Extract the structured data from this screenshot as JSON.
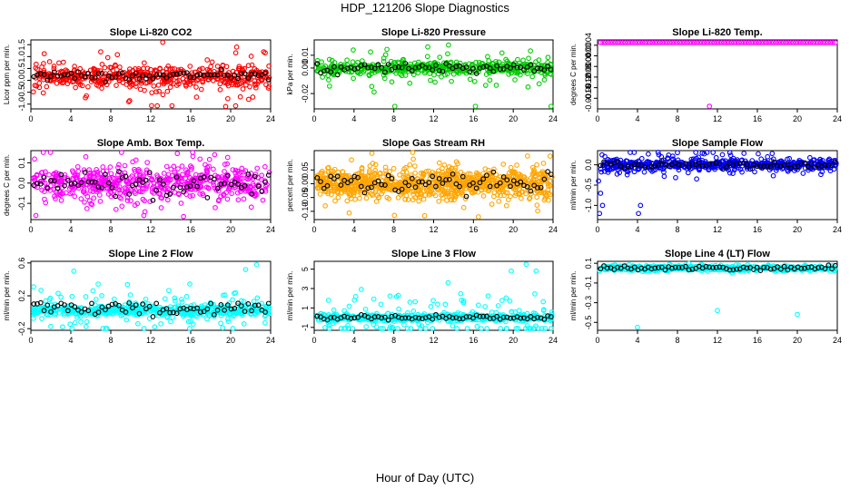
{
  "figure": {
    "title": "HDP_121206  Slope Diagnostics",
    "xlabel": "Hour of Day (UTC)"
  },
  "chart_data": [
    {
      "type": "scatter",
      "title": "Slope Li-820 CO2",
      "ylabel": "Licor ppm per min.",
      "xlim": [
        0,
        24
      ],
      "xticks": [
        0,
        4,
        8,
        12,
        16,
        20,
        24
      ],
      "ylim": [
        -1.2,
        1.7
      ],
      "yticks": [
        -1,
        -0.5,
        0,
        0.5,
        1,
        1.5
      ],
      "ytick_labels": [
        "-1.0",
        "-0.5",
        "0.0",
        "0.5",
        "1.0",
        "1.5"
      ],
      "color": "#ff0000",
      "center": 0.15,
      "spread": 0.35,
      "out_spread": 0.9,
      "n": 520,
      "black_center": 0.2,
      "black_spread": 0.15,
      "outliers": [
        [
          13.2,
          1.6
        ],
        [
          19.5,
          -1.1
        ],
        [
          20.6,
          1.4
        ],
        [
          21.8,
          -0.8
        ],
        [
          23.3,
          1.2
        ],
        [
          9.8,
          -0.9
        ]
      ]
    },
    {
      "type": "scatter",
      "title": "Slope Li-820 Pressure",
      "ylabel": "kPa per min.",
      "xlim": [
        0,
        24
      ],
      "xticks": [
        0,
        4,
        8,
        12,
        16,
        20,
        24
      ],
      "ylim": [
        -0.032,
        0.022
      ],
      "yticks": [
        -0.02,
        0,
        0.01
      ],
      "ytick_labels": [
        "-0.02",
        "0.00",
        "0.01"
      ],
      "color": "#00cc00",
      "center": 0.0,
      "spread": 0.004,
      "out_spread": 0.012,
      "n": 520,
      "black_center": 0.0,
      "black_spread": 0.003,
      "outliers": [
        [
          8.1,
          -0.03
        ],
        [
          16.2,
          -0.03
        ],
        [
          23.8,
          -0.03
        ],
        [
          13.5,
          0.018
        ]
      ]
    },
    {
      "type": "scatter",
      "title": "Slope Li-820 Temp.",
      "ylabel": "degrees C per min.",
      "xlim": [
        0,
        24
      ],
      "xticks": [
        0,
        4,
        8,
        12,
        16,
        20,
        24
      ],
      "ylim": [
        -0.002,
        0.0006
      ],
      "yticks": [
        -0.0016,
        -0.0012,
        -0.0008,
        -0.0004,
        0,
        0.0004
      ],
      "ytick_labels": [
        "-0.0016",
        "-0.0012",
        "-0.0008",
        "-0.0004",
        "0.0000",
        "0.0004"
      ],
      "color": "#ff00ff",
      "flat": 0.0005,
      "n": 96,
      "outliers": [
        [
          11.2,
          -0.0019
        ]
      ]
    },
    {
      "type": "scatter",
      "title": "Slope Amb. Box Temp.",
      "ylabel": "degrees C per min.",
      "xlim": [
        0,
        24
      ],
      "xticks": [
        0,
        4,
        8,
        12,
        16,
        20,
        24
      ],
      "ylim": [
        -0.18,
        0.16
      ],
      "yticks": [
        -0.1,
        0,
        0.1
      ],
      "ytick_labels": [
        "-0.1",
        "0.0",
        "0.1"
      ],
      "color": "#ff00ff",
      "center": 0.0,
      "spread": 0.06,
      "out_spread": 0.12,
      "n": 600,
      "black_center": 0.0,
      "black_spread": 0.05,
      "outliers": [
        [
          0.5,
          -0.16
        ],
        [
          5.5,
          0.13
        ],
        [
          18.4,
          0.14
        ]
      ]
    },
    {
      "type": "scatter",
      "title": "Slope Gas Stream RH",
      "ylabel": "percent per min.",
      "xlim": [
        0,
        24
      ],
      "xticks": [
        0,
        4,
        8,
        12,
        16,
        20,
        24
      ],
      "ylim": [
        -0.13,
        0.12
      ],
      "yticks": [
        -0.1,
        -0.05,
        0,
        0.05
      ],
      "ytick_labels": [
        "-0.10",
        "-0.05",
        "0.00",
        "0.05"
      ],
      "color": "#ffa500",
      "center": 0.0,
      "spread": 0.04,
      "out_spread": 0.07,
      "n": 900,
      "black_center": 0.0,
      "black_spread": 0.03,
      "outliers": [
        [
          5.8,
          0.11
        ],
        [
          16.5,
          -0.12
        ],
        [
          23.7,
          0.1
        ]
      ]
    },
    {
      "type": "scatter",
      "title": "Slope Sample Flow",
      "ylabel": "ml/min per min.",
      "xlim": [
        0,
        24
      ],
      "xticks": [
        0,
        4,
        8,
        12,
        16,
        20,
        24
      ],
      "ylim": [
        -1.35,
        0.35
      ],
      "yticks": [
        -1,
        -0.5,
        0
      ],
      "ytick_labels": [
        "-1.0",
        "-0.5",
        "0.0"
      ],
      "color": "#0000ff",
      "center": 0.0,
      "spread": 0.1,
      "out_spread": 0.25,
      "n": 600,
      "black_center": 0.0,
      "black_spread": 0.08,
      "outliers": [
        [
          0.1,
          -0.4
        ],
        [
          0.3,
          -0.7
        ],
        [
          0.5,
          -1.0
        ],
        [
          0.2,
          -1.2
        ],
        [
          4.1,
          -1.2
        ],
        [
          4.3,
          -1.0
        ],
        [
          8.0,
          0.3
        ]
      ]
    },
    {
      "type": "scatter",
      "title": "Slope Line 2 Flow",
      "ylabel": "ml/min per min.",
      "xlim": [
        0,
        24
      ],
      "xticks": [
        0,
        4,
        8,
        12,
        16,
        20,
        24
      ],
      "ylim": [
        -0.22,
        0.62
      ],
      "yticks": [
        -0.2,
        0.2,
        0.6
      ],
      "ytick_labels": [
        "-0.2",
        "0.2",
        "0.6"
      ],
      "color": "#00ffff",
      "center": 0.02,
      "spread": 0.05,
      "out_spread": 0.25,
      "n": 600,
      "black_center": 0.05,
      "black_spread": 0.06,
      "outliers": [
        [
          4.3,
          0.5
        ],
        [
          22.6,
          0.58
        ],
        [
          21.5,
          0.52
        ]
      ]
    },
    {
      "type": "scatter",
      "title": "Slope Line 3 Flow",
      "ylabel": "ml/min per min.",
      "xlim": [
        0,
        24
      ],
      "xticks": [
        0,
        4,
        8,
        12,
        16,
        20,
        24
      ],
      "ylim": [
        -1.3,
        5.8
      ],
      "yticks": [
        -1,
        1,
        3,
        5
      ],
      "ytick_labels": [
        "-1",
        "1",
        "3",
        "5"
      ],
      "color": "#00ffff",
      "center": 0.0,
      "spread": 0.3,
      "out_spread": 2.5,
      "n": 550,
      "black_center": 0.0,
      "black_spread": 0.2,
      "outliers": [
        [
          21.3,
          5.5
        ],
        [
          22.3,
          4.8
        ],
        [
          19.8,
          4.8
        ]
      ]
    },
    {
      "type": "scatter",
      "title": "Slope Line 4 (LT) Flow",
      "ylabel": "ml/min per min.",
      "xlim": [
        0,
        24
      ],
      "xticks": [
        0,
        4,
        8,
        12,
        16,
        20,
        24
      ],
      "ylim": [
        -0.58,
        0.12
      ],
      "yticks": [
        -0.5,
        -0.3,
        -0.1,
        0.1
      ],
      "ytick_labels": [
        "-0.5",
        "-0.3",
        "-0.1",
        "0.1"
      ],
      "color": "#00ffff",
      "center": 0.05,
      "spread": 0.02,
      "out_spread": 0.03,
      "n": 500,
      "black_center": 0.05,
      "black_spread": 0.02,
      "outliers": [
        [
          4.0,
          -0.55
        ],
        [
          12.0,
          -0.38
        ],
        [
          20.0,
          -0.42
        ]
      ]
    }
  ]
}
